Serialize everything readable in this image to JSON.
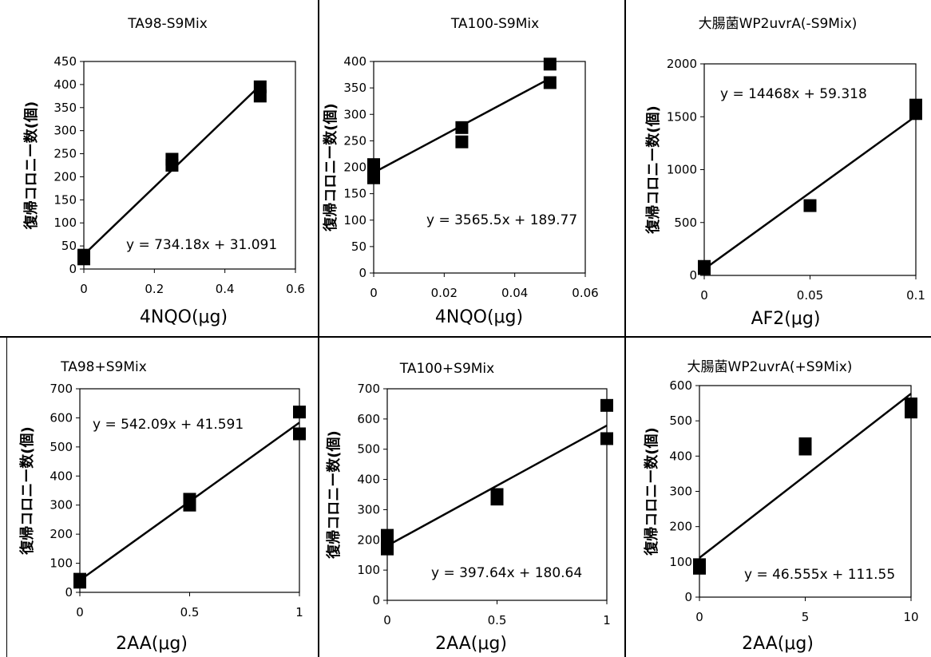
{
  "chart_data": [
    {
      "type": "scatter",
      "title": "TA98-S9Mix",
      "xlabel": "4NQO(μg)",
      "ylabel": "復帰コロニー数(個)",
      "xlim": [
        0,
        0.6
      ],
      "ylim": [
        0,
        450
      ],
      "xticks": [
        "0",
        "0.2",
        "0.4",
        "0.6"
      ],
      "yticks": [
        "0",
        "50",
        "100",
        "150",
        "200",
        "250",
        "300",
        "350",
        "400",
        "450"
      ],
      "series": [
        {
          "x": [
            0,
            0,
            0.25,
            0.25,
            0.5,
            0.5
          ],
          "y": [
            22,
            30,
            225,
            238,
            375,
            395
          ]
        }
      ],
      "trendline": {
        "slope": 734.18,
        "intercept": 31.091
      },
      "equation": "y = 734.18x + 31.091",
      "grid": false
    },
    {
      "type": "scatter",
      "title": "TA100-S9Mix",
      "xlabel": "4NQO(μg)",
      "ylabel": "復帰コロニー数(個)",
      "xlim": [
        0,
        0.06
      ],
      "ylim": [
        0,
        400
      ],
      "xticks": [
        "0",
        "0.02",
        "0.04",
        "0.06"
      ],
      "yticks": [
        "0",
        "50",
        "100",
        "150",
        "200",
        "250",
        "300",
        "350",
        "400"
      ],
      "series": [
        {
          "x": [
            0,
            0,
            0,
            0.025,
            0.025,
            0.05,
            0.05
          ],
          "y": [
            180,
            195,
            205,
            248,
            275,
            360,
            395
          ]
        }
      ],
      "trendline": {
        "slope": 3565.5,
        "intercept": 189.77
      },
      "equation": "y = 3565.5x + 189.77",
      "grid": false
    },
    {
      "type": "scatter",
      "title": "大腸菌WP2uvrA(-S9Mix)",
      "xlabel": "AF2(μg)",
      "ylabel": "復帰コロニー数(個)",
      "xlim": [
        0,
        0.1
      ],
      "ylim": [
        0,
        2000
      ],
      "xticks": [
        "0",
        "0.05",
        "0.1"
      ],
      "yticks": [
        "0",
        "500",
        "1000",
        "1500",
        "2000"
      ],
      "series": [
        {
          "x": [
            0,
            0,
            0.05,
            0.1,
            0.1
          ],
          "y": [
            65,
            85,
            660,
            1530,
            1610
          ]
        }
      ],
      "trendline": {
        "slope": 14468,
        "intercept": 59.318
      },
      "equation": "y = 14468x + 59.318",
      "grid": false
    },
    {
      "type": "scatter",
      "title": "TA98+S9Mix",
      "xlabel": "2AA(μg)",
      "ylabel": "復帰コロニー数(個)",
      "xlim": [
        0,
        1
      ],
      "ylim": [
        0,
        700
      ],
      "xticks": [
        "0",
        "0.5",
        "1"
      ],
      "yticks": [
        "0",
        "100",
        "200",
        "300",
        "400",
        "500",
        "600",
        "700"
      ],
      "series": [
        {
          "x": [
            0,
            0,
            0.5,
            0.5,
            1,
            1
          ],
          "y": [
            35,
            45,
            300,
            320,
            545,
            620
          ]
        }
      ],
      "trendline": {
        "slope": 542.09,
        "intercept": 41.591
      },
      "equation": "y = 542.09x + 41.591",
      "grid": false
    },
    {
      "type": "scatter",
      "title": "TA100+S9Mix",
      "xlabel": "2AA(μg)",
      "ylabel": "復帰コロニー数(個)",
      "xlim": [
        0,
        1
      ],
      "ylim": [
        0,
        700
      ],
      "xticks": [
        "0",
        "0.5",
        "1"
      ],
      "yticks": [
        "0",
        "100",
        "200",
        "300",
        "400",
        "500",
        "600",
        "700"
      ],
      "series": [
        {
          "x": [
            0,
            0,
            0,
            0.5,
            0.5,
            1,
            1
          ],
          "y": [
            170,
            195,
            215,
            335,
            350,
            535,
            645
          ]
        }
      ],
      "trendline": {
        "slope": 397.64,
        "intercept": 180.64
      },
      "equation": "y = 397.64x + 180.64",
      "grid": false
    },
    {
      "type": "scatter",
      "title": "大腸菌WP2uvrA(+S9Mix)",
      "xlabel": "2AA(μg)",
      "ylabel": "復帰コロニー数(個)",
      "xlim": [
        0,
        10
      ],
      "ylim": [
        0,
        600
      ],
      "xticks": [
        "0",
        "5",
        "10"
      ],
      "yticks": [
        "0",
        "100",
        "200",
        "300",
        "400",
        "500",
        "600"
      ],
      "series": [
        {
          "x": [
            0,
            0,
            5,
            5,
            10,
            10
          ],
          "y": [
            82,
            92,
            420,
            435,
            525,
            548
          ]
        }
      ],
      "trendline": {
        "slope": 46.555,
        "intercept": 111.55
      },
      "equation": "y = 46.555x + 111.55",
      "grid": false
    }
  ]
}
